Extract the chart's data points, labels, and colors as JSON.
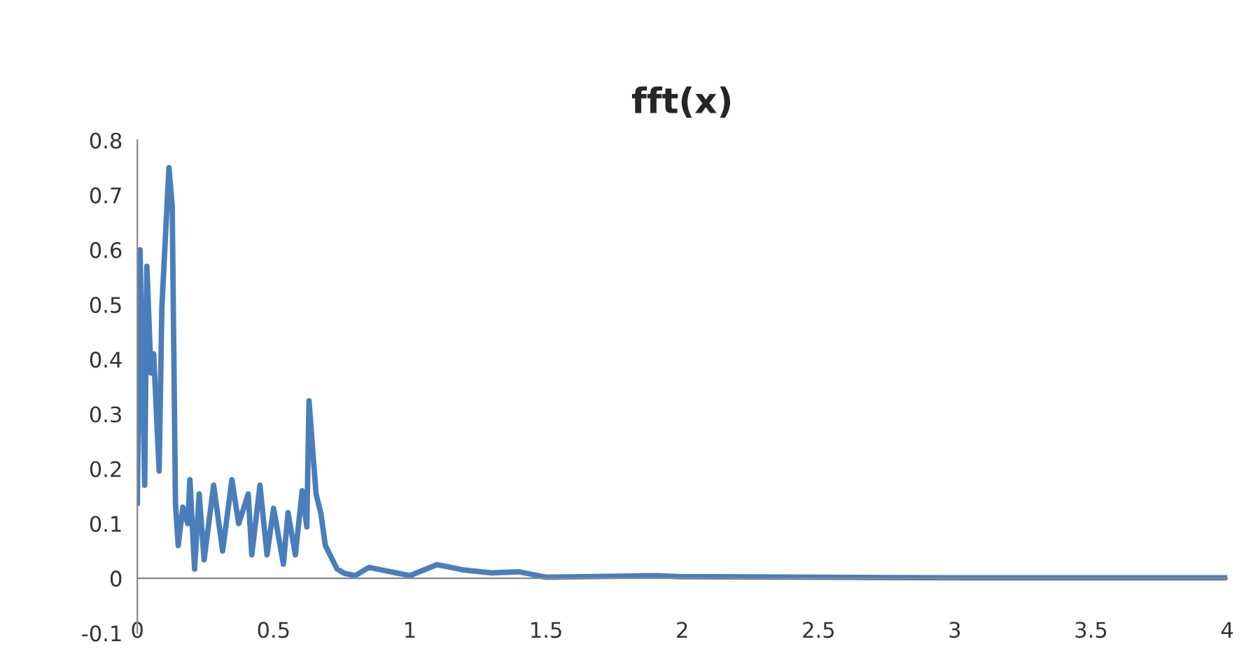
{
  "chart_data": {
    "type": "line",
    "title": "fft(x)",
    "x": [
      0.0,
      0.01,
      0.027,
      0.035,
      0.05,
      0.06,
      0.08,
      0.09,
      0.116,
      0.128,
      0.14,
      0.15,
      0.167,
      0.185,
      0.193,
      0.21,
      0.227,
      0.245,
      0.28,
      0.313,
      0.347,
      0.372,
      0.407,
      0.42,
      0.45,
      0.476,
      0.5,
      0.536,
      0.553,
      0.58,
      0.605,
      0.622,
      0.63,
      0.656,
      0.673,
      0.69,
      0.707,
      0.733,
      0.76,
      0.8,
      0.85,
      0.9,
      0.95,
      1.0,
      1.1,
      1.15,
      1.2,
      1.3,
      1.4,
      1.5,
      1.9,
      2.0,
      2.5,
      3.0,
      4.0
    ],
    "series": [
      {
        "color": "#4a7ebb",
        "values": [
          0.136,
          0.6,
          0.17,
          0.57,
          0.375,
          0.41,
          0.196,
          0.495,
          0.75,
          0.68,
          0.136,
          0.06,
          0.13,
          0.1,
          0.18,
          0.017,
          0.154,
          0.034,
          0.17,
          0.05,
          0.18,
          0.1,
          0.154,
          0.043,
          0.17,
          0.043,
          0.128,
          0.026,
          0.12,
          0.043,
          0.16,
          0.094,
          0.324,
          0.154,
          0.12,
          0.06,
          0.043,
          0.017,
          0.009,
          0.005,
          0.02,
          0.015,
          0.01,
          0.005,
          0.025,
          0.02,
          0.015,
          0.01,
          0.012,
          0.002,
          0.005,
          0.003,
          0.002,
          0.001,
          0.001
        ]
      }
    ],
    "xlim": [
      0,
      4
    ],
    "xticks": [
      0,
      0.5,
      1,
      1.5,
      2,
      2.5,
      3,
      3.5,
      4
    ],
    "ylim": [
      -0.1,
      0.8
    ],
    "yticks": [
      -0.1,
      0,
      0.1,
      0.2,
      0.3,
      0.4,
      0.5,
      0.6,
      0.7,
      0.8
    ],
    "grid": false,
    "marker": "none",
    "line_style": "solid"
  }
}
